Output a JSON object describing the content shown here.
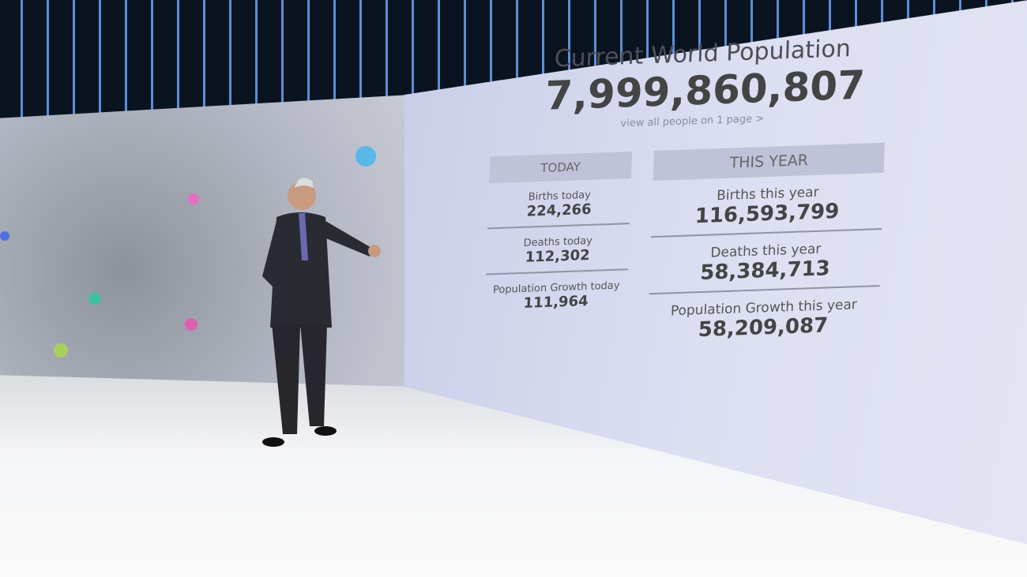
{
  "screen": {
    "title": "Current World Population",
    "total": "7,999,860,807",
    "link": "view all people on 1 page >",
    "today": {
      "header": "TODAY",
      "rows": [
        {
          "label": "Births today",
          "value": "224,266"
        },
        {
          "label": "Deaths today",
          "value": "112,302"
        },
        {
          "label": "Population Growth today",
          "value": "111,964"
        }
      ]
    },
    "year": {
      "header": "THIS YEAR",
      "rows": [
        {
          "label": "Births this year",
          "value": "116,593,799"
        },
        {
          "label": "Deaths this year",
          "value": "58,384,713"
        },
        {
          "label": "Population Growth this year",
          "value": "58,209,087"
        }
      ]
    }
  },
  "colors": {
    "screen_bg": "#dcdff2",
    "text": "#4a4a52",
    "header_bg": "#bfc2d9",
    "ceiling_stripe": "#5a8fd8"
  }
}
